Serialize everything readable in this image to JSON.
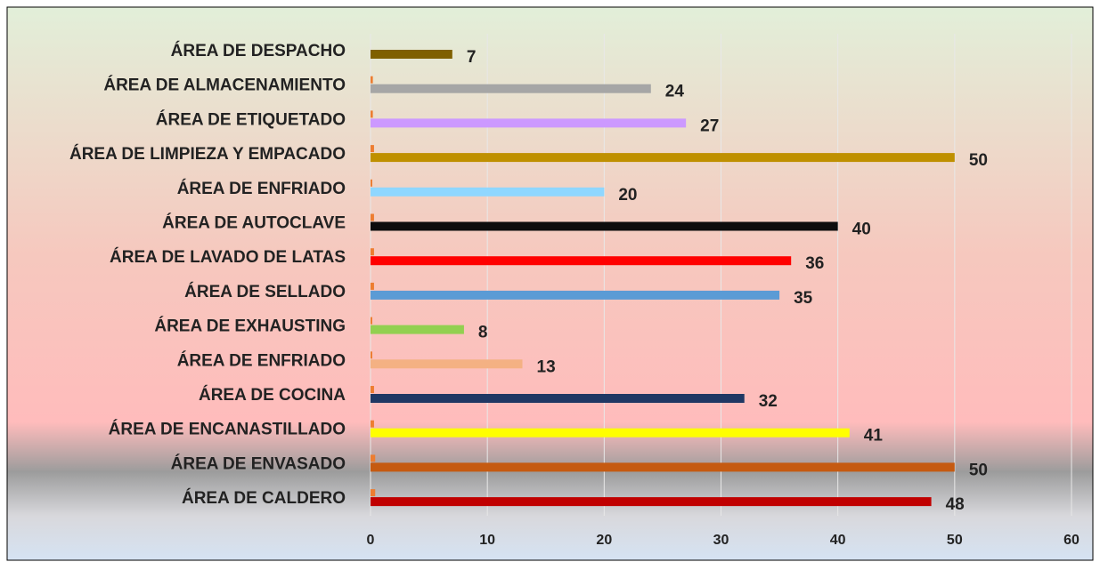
{
  "chart_data": {
    "type": "bar",
    "orientation": "horizontal",
    "categories": [
      "ÁREA DE DESPACHO",
      "ÁREA DE ALMACENAMIENTO",
      "ÁREA DE  ETIQUETADO ",
      "ÁREA DE LIMPIEZA Y EMPACADO",
      "ÁREA DE ENFRIADO",
      "ÁREA DE AUTOCLAVE",
      "ÁREA DE LAVADO DE LATAS",
      "ÁREA DE SELLADO",
      "ÁREA DE EXHAUSTING",
      "ÁREA DE ENFRIADO",
      "ÁREA DE COCINA",
      "ÁREA DE ENCANASTILLADO",
      "ÁREA DE ENVASADO",
      "ÁREA DE CALDERO"
    ],
    "series": [
      {
        "color": "#ed7d31",
        "values": [
          0.3,
          0.2,
          0.2,
          0.3,
          0.15,
          0.3,
          0.3,
          0.3,
          0.15,
          0.15,
          0.3,
          0.3,
          0.4,
          0.4
        ]
      },
      {
        "colors": [
          "#7f6000",
          "#a6a6a6",
          "#cc99ff",
          "#bf9000",
          "#8fd7ff",
          "#0d0d0d",
          "#ff0000",
          "#5b9bd5",
          "#92d050",
          "#f4b183",
          "#1f3864",
          "#ffff00",
          "#c55a11",
          "#c00000"
        ],
        "values": [
          7,
          24,
          27,
          50,
          20,
          40,
          36,
          35,
          8,
          13,
          32,
          41,
          50,
          48
        ]
      }
    ],
    "xlim": [
      0,
      60
    ],
    "xticks": [
      0,
      10,
      20,
      30,
      40,
      50,
      60
    ],
    "grid": true
  }
}
